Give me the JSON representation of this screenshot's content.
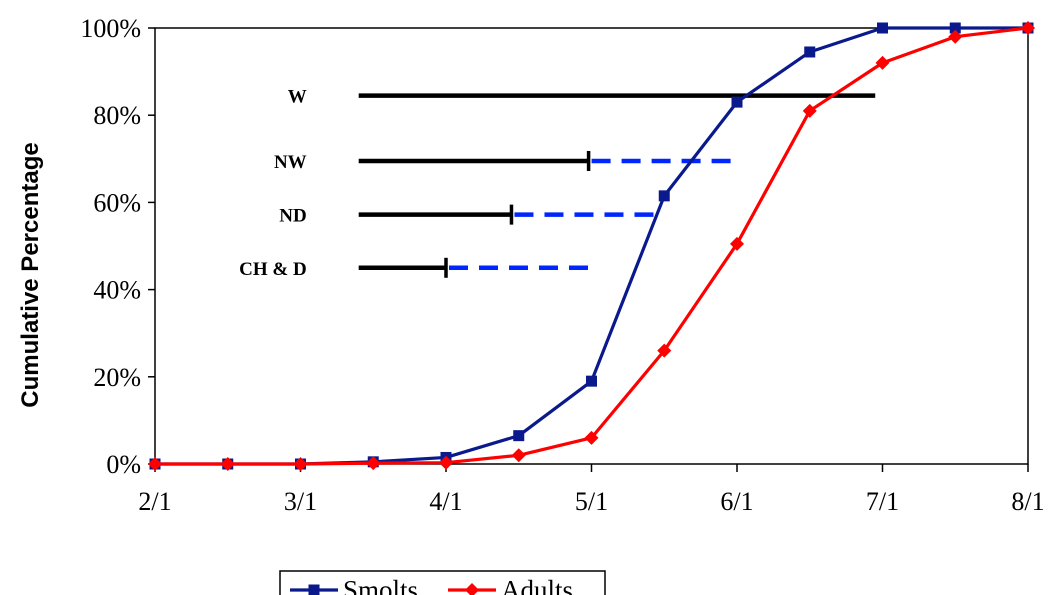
{
  "chart_data": {
    "type": "line",
    "title": "",
    "xlabel": "",
    "ylabel": "Cumulative Percentage",
    "x_tick_labels": [
      "2/1",
      "3/1",
      "4/1",
      "5/1",
      "6/1",
      "7/1",
      "8/1"
    ],
    "y_tick_labels": [
      "0%",
      "20%",
      "40%",
      "60%",
      "80%",
      "100%"
    ],
    "ylim": [
      0,
      100
    ],
    "x_months": [
      2,
      8
    ],
    "grid": false,
    "legend": {
      "position": "bottom-left",
      "entries": [
        "Smolts",
        "Adults"
      ]
    },
    "x": [
      2.0,
      2.5,
      3.0,
      3.5,
      4.0,
      4.5,
      5.0,
      5.5,
      6.0,
      6.5,
      7.0,
      7.5,
      8.0
    ],
    "series": [
      {
        "name": "Smolts",
        "color": "#0a1a8c",
        "marker": "square",
        "values": [
          0,
          0,
          0,
          0.5,
          1.5,
          6.5,
          19,
          61.5,
          83,
          94.5,
          100,
          100,
          100
        ]
      },
      {
        "name": "Adults",
        "color": "#ff0000",
        "marker": "diamond",
        "values": [
          0,
          0,
          0,
          0.2,
          0.3,
          2,
          6,
          26,
          50.5,
          81,
          92,
          98,
          100
        ]
      }
    ],
    "ranges": [
      {
        "label": "W",
        "start": 3.4,
        "solid_end": 6.95,
        "dashed_end": null,
        "level": 84.5
      },
      {
        "label": "NW",
        "start": 3.4,
        "solid_end": 4.98,
        "dashed_end": 6.0,
        "level": 69.5
      },
      {
        "label": "ND",
        "start": 3.4,
        "solid_end": 4.45,
        "dashed_end": 5.5,
        "level": 57.2
      },
      {
        "label": "CH & D",
        "start": 3.4,
        "solid_end": 4.0,
        "dashed_end": 4.98,
        "level": 45
      }
    ],
    "range_colors": {
      "solid": "#000000",
      "dashed": "#0026ff"
    }
  }
}
